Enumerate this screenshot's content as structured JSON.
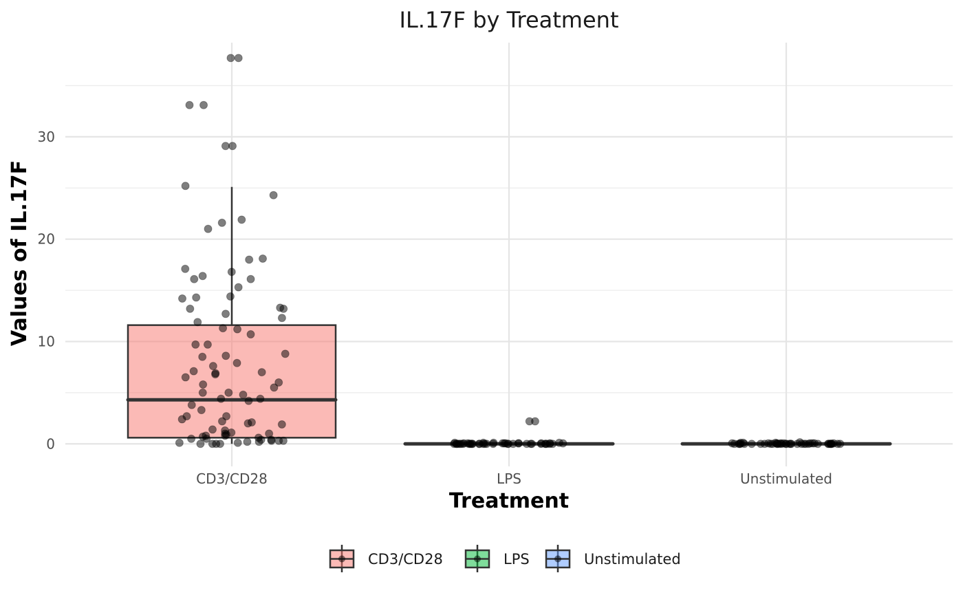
{
  "chart_data": {
    "type": "box",
    "title": "IL.17F by Treatment",
    "xlabel": "Treatment",
    "ylabel": "Values of IL.17F",
    "categories": [
      "CD3/CD28",
      "LPS",
      "Unstimulated"
    ],
    "ylim": [
      -2.2,
      39.2
    ],
    "yticks": [
      0,
      10,
      20,
      30
    ],
    "grid": true,
    "legend_position": "bottom",
    "colors": {
      "CD3/CD28": "#F8766D",
      "LPS": "#00BA38",
      "Unstimulated": "#619CFF"
    },
    "boxes": [
      {
        "category": "CD3/CD28",
        "lower_whisker": 0,
        "q1": 0.6,
        "median": 4.3,
        "q3": 11.6,
        "upper_whisker": 25.1
      },
      {
        "category": "LPS",
        "lower_whisker": 0,
        "q1": 0,
        "median": 0,
        "q3": 0,
        "upper_whisker": 0
      },
      {
        "category": "Unstimulated",
        "lower_whisker": 0,
        "q1": 0,
        "median": 0,
        "q3": 0,
        "upper_whisker": 0
      }
    ],
    "points": [
      {
        "category": "CD3/CD28",
        "values": [
          37.7,
          37.7,
          33.1,
          33.1,
          29.1,
          29.1,
          25.2,
          24.3,
          21.9,
          21.6,
          21.0,
          18.1,
          18.0,
          17.1,
          16.8,
          16.4,
          16.1,
          16.1,
          15.3,
          14.4,
          14.3,
          14.2,
          13.3,
          13.2,
          13.2,
          12.7,
          12.3,
          11.9,
          11.3,
          11.2,
          10.7,
          9.7,
          9.7,
          8.8,
          8.6,
          8.5,
          7.9,
          7.6,
          7.1,
          7.0,
          6.9,
          6.8,
          6.5,
          6.0,
          5.8,
          5.5,
          5.0,
          5.0,
          4.8,
          4.4,
          4.4,
          4.2,
          3.8,
          3.3,
          2.7,
          2.7,
          2.4,
          2.2,
          2.1,
          2.0,
          1.9,
          1.4,
          1.3,
          1.1,
          1.0,
          1.0,
          0.9,
          0.8,
          0.8,
          0.7,
          0.6,
          0.5,
          0.5,
          0.4,
          0.4,
          0.3,
          0.3,
          0.3,
          0.2,
          0.2,
          0.1,
          0.1,
          0.0,
          0.0,
          0.0,
          0.0
        ]
      },
      {
        "category": "LPS",
        "values": [
          2.2,
          2.2,
          0.1,
          0.1,
          0.1,
          0.1,
          0.05,
          0.05,
          0.05,
          0.05,
          0.05,
          0.05,
          0.05,
          0.05,
          0.05,
          0.05,
          0.0,
          0.0,
          0.0,
          0.0,
          0.0,
          0.0,
          0.0,
          0.0,
          0.0,
          0.0,
          0.0,
          0.0,
          0.0,
          0.0,
          0.0,
          0.0,
          0.0,
          0.0,
          0.0,
          0.0,
          0.0,
          0.0,
          0.0,
          0.0,
          0.0,
          0.0,
          0.0,
          0.0,
          0.0,
          0.0
        ]
      },
      {
        "category": "Unstimulated",
        "values": [
          0.15,
          0.1,
          0.1,
          0.1,
          0.05,
          0.05,
          0.05,
          0.05,
          0.05,
          0.05,
          0.05,
          0.05,
          0.05,
          0.0,
          0.0,
          0.0,
          0.0,
          0.0,
          0.0,
          0.0,
          0.0,
          0.0,
          0.0,
          0.0,
          0.0,
          0.0,
          0.0,
          0.0,
          0.0,
          0.0,
          0.0,
          0.0,
          0.0,
          0.0,
          0.0,
          0.0,
          0.0,
          0.0,
          0.0,
          0.0,
          0.0,
          0.0,
          0.0,
          0.0,
          0.0,
          0.0
        ]
      }
    ],
    "legend": [
      "CD3/CD28",
      "LPS",
      "Unstimulated"
    ]
  }
}
